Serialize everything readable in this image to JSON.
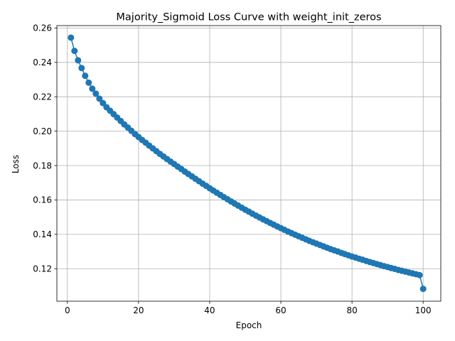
{
  "chart_data": {
    "type": "line",
    "title": "Majority_Sigmoid Loss Curve with weight_init_zeros",
    "xlabel": "Epoch",
    "ylabel": "Loss",
    "xlim": [
      -2.95,
      104.95
    ],
    "ylim": [
      0.1011,
      0.2614
    ],
    "xticks": [
      0,
      20,
      40,
      60,
      80,
      100
    ],
    "yticks": [
      0.12,
      0.14,
      0.16,
      0.18,
      0.2,
      0.22,
      0.24,
      0.26
    ],
    "ytick_labels": [
      "0.12",
      "0.14",
      "0.16",
      "0.18",
      "0.20",
      "0.22",
      "0.24",
      "0.26"
    ],
    "grid": true,
    "markers": true,
    "color": "#1f77b4",
    "series": [
      {
        "x": [
          1,
          2,
          3,
          4,
          5,
          6,
          7,
          8,
          9,
          10,
          11,
          12,
          13,
          14,
          15,
          16,
          17,
          18,
          19,
          20,
          21,
          22,
          23,
          24,
          25,
          26,
          27,
          28,
          29,
          30,
          31,
          32,
          33,
          34,
          35,
          36,
          37,
          38,
          39,
          40,
          41,
          42,
          43,
          44,
          45,
          46,
          47,
          48,
          49,
          50,
          51,
          52,
          53,
          54,
          55,
          56,
          57,
          58,
          59,
          60,
          61,
          62,
          63,
          64,
          65,
          66,
          67,
          68,
          69,
          70,
          71,
          72,
          73,
          74,
          75,
          76,
          77,
          78,
          79,
          80,
          81,
          82,
          83,
          84,
          85,
          86,
          87,
          88,
          89,
          90,
          91,
          92,
          93,
          94,
          95,
          96,
          97,
          98,
          99,
          100
        ],
        "values": [
          0.2544,
          0.2467,
          0.2412,
          0.2367,
          0.2322,
          0.2282,
          0.2247,
          0.2218,
          0.2189,
          0.2163,
          0.2139,
          0.2119,
          0.2099,
          0.2079,
          0.2059,
          0.2039,
          0.2021,
          0.2002,
          0.1983,
          0.1966,
          0.1949,
          0.1933,
          0.1916,
          0.19,
          0.1884,
          0.1868,
          0.1853,
          0.1838,
          0.1823,
          0.1809,
          0.1794,
          0.178,
          0.1765,
          0.1751,
          0.1737,
          0.1723,
          0.1709,
          0.1695,
          0.1682,
          0.1668,
          0.1655,
          0.1642,
          0.1629,
          0.1616,
          0.1604,
          0.1591,
          0.1579,
          0.1567,
          0.1555,
          0.1543,
          0.1532,
          0.152,
          0.1509,
          0.1498,
          0.1487,
          0.1477,
          0.1466,
          0.1456,
          0.1446,
          0.1436,
          0.1426,
          0.1416,
          0.1407,
          0.1398,
          0.1389,
          0.138,
          0.1371,
          0.1362,
          0.1354,
          0.1346,
          0.1338,
          0.133,
          0.1322,
          0.1314,
          0.1307,
          0.13,
          0.1292,
          0.1285,
          0.1278,
          0.1271,
          0.1265,
          0.1258,
          0.1252,
          0.1245,
          0.1239,
          0.1233,
          0.1227,
          0.1221,
          0.1215,
          0.121,
          0.1204,
          0.1199,
          0.1193,
          0.1188,
          0.1183,
          0.1178,
          0.1173,
          0.1168,
          0.1163,
          0.1083
        ]
      }
    ]
  }
}
